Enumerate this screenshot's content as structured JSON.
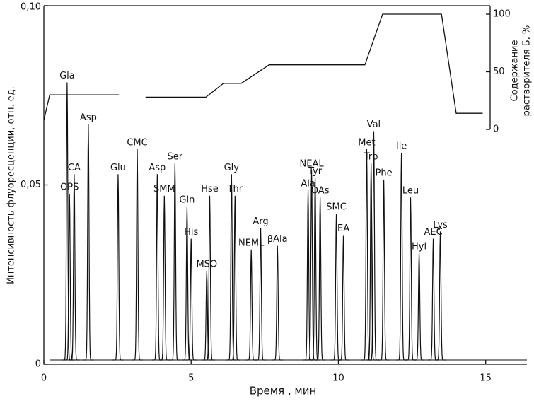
{
  "chart_data": {
    "type": "chromatogram",
    "xlabel": "Время , мин",
    "ylabel": "Интенсивность флуоресценции, отн. ед.",
    "y2label": [
      "Содержание",
      "растворителя Б, %"
    ],
    "xlim": [
      0,
      16.4
    ],
    "xticks": [
      0,
      5,
      10,
      15
    ],
    "ylim": [
      0,
      0.1
    ],
    "yticks": [
      0,
      {
        "value": 0.05,
        "label": "0,05"
      },
      {
        "value": 0.1,
        "label": "0,10"
      }
    ],
    "y2lim": [
      0,
      100
    ],
    "y2ticks": [
      0,
      50,
      100
    ],
    "peaks": {
      "names": [
        "Gla",
        "OPS",
        "CA",
        "Asp",
        "Glu",
        "CMC",
        "Asp",
        "SMM",
        "Ser",
        "Gln",
        "His",
        "MSO",
        "Hse",
        "Gly",
        "Thr",
        "NEML",
        "Arg",
        "βAla",
        "Ala",
        "NEAL",
        "Tyr",
        "OAs",
        "SMC",
        "EA",
        "Met",
        "Trp",
        "Val",
        "Phe",
        "Ile",
        "Leu",
        "Hyl",
        "AEC",
        "Lys"
      ],
      "x": [
        0.79,
        0.87,
        1.03,
        1.51,
        2.52,
        3.17,
        3.85,
        4.09,
        4.45,
        4.86,
        5.0,
        5.53,
        5.63,
        6.37,
        6.49,
        7.04,
        7.36,
        7.93,
        8.97,
        9.09,
        9.21,
        9.38,
        9.93,
        10.17,
        10.96,
        11.11,
        11.2,
        11.54,
        12.14,
        12.45,
        12.74,
        13.22,
        13.46
      ],
      "values": [
        0.0786,
        0.0475,
        0.053,
        0.067,
        0.053,
        0.06,
        0.053,
        0.047,
        0.056,
        0.044,
        0.035,
        0.026,
        0.047,
        0.053,
        0.047,
        0.032,
        0.038,
        0.033,
        0.0485,
        0.054,
        0.052,
        0.0465,
        0.042,
        0.036,
        0.06,
        0.056,
        0.065,
        0.0515,
        0.059,
        0.0465,
        0.031,
        0.035,
        0.037
      ]
    },
    "series": [
      {
        "axis": "y2",
        "x": [
          0,
          0.2,
          2.55,
          3.0,
          3.45,
          5.5,
          6.1,
          6.7,
          7.65,
          10.9,
          11.5,
          13.5,
          14.0,
          14.9
        ],
        "values": [
          8,
          30,
          30,
          null,
          28,
          28,
          40,
          40,
          56,
          56,
          100,
          100,
          14,
          14
        ]
      }
    ]
  }
}
